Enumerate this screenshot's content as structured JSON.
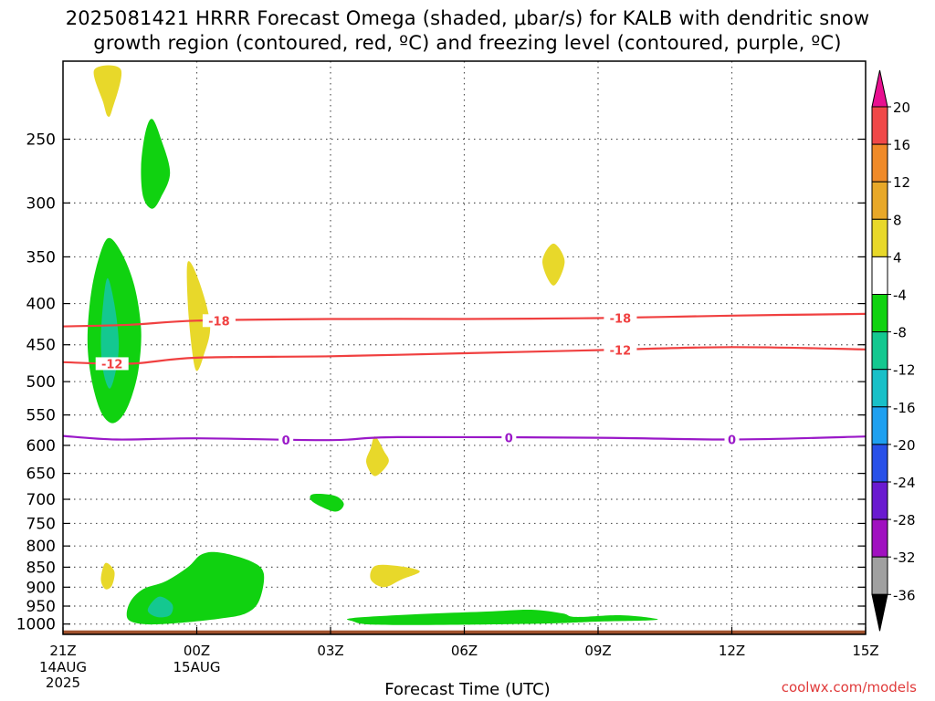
{
  "chart_data": {
    "type": "heatmap",
    "title_line1": "2025081421 HRRR Forecast Omega (shaded, μbar/s) for KALB with dendritic snow",
    "title_line2": "growth region (contoured, red, ºC) and freezing level (contoured, purple, ºC)",
    "xlabel": "Forecast Time (UTC)",
    "credit": "coolwx.com/models",
    "x_ticks": [
      {
        "h": 0,
        "label": "21Z",
        "sub": [
          "14AUG",
          "2025"
        ]
      },
      {
        "h": 3,
        "label": "00Z",
        "sub": [
          "15AUG"
        ]
      },
      {
        "h": 6,
        "label": "03Z",
        "sub": []
      },
      {
        "h": 9,
        "label": "06Z",
        "sub": []
      },
      {
        "h": 12,
        "label": "09Z",
        "sub": []
      },
      {
        "h": 15,
        "label": "12Z",
        "sub": []
      },
      {
        "h": 18,
        "label": "15Z",
        "sub": []
      }
    ],
    "x_range_hours": [
      0,
      18
    ],
    "y_axis": "pressure (hPa), log scale, decreasing upward",
    "y_range": [
      1030,
      200
    ],
    "y_ticks": [
      250,
      300,
      350,
      400,
      450,
      500,
      550,
      600,
      650,
      700,
      750,
      800,
      850,
      900,
      950,
      1000
    ],
    "grid": true,
    "colorbar": {
      "labels": [
        "20",
        "16",
        "12",
        "8",
        "4",
        "-4",
        "-8",
        "-12",
        "-16",
        "-20",
        "-24",
        "-28",
        "-32",
        "-36"
      ],
      "bins": [
        {
          "range": "16 to 20",
          "color": "#f04848"
        },
        {
          "range": "12 to 16",
          "color": "#f08a28"
        },
        {
          "range": "8 to 12",
          "color": "#e8a828"
        },
        {
          "range": "4 to 8",
          "color": "#e8d82a"
        },
        {
          "range": "-4 to 4",
          "color": "#ffffff"
        },
        {
          "range": "-8 to -4",
          "color": "#10d210"
        },
        {
          "range": "-12 to -8",
          "color": "#14c890"
        },
        {
          "range": "-16 to -12",
          "color": "#18c0c8"
        },
        {
          "range": "-20 to -16",
          "color": "#1ea0f0"
        },
        {
          "range": "-24 to -20",
          "color": "#2850e8"
        },
        {
          "range": "-28 to -24",
          "color": "#6a1ad0"
        },
        {
          "range": "-32 to -28",
          "color": "#a010c0"
        },
        {
          "range": "-36 to -32",
          "color": "#a0a0a0"
        }
      ],
      "top_arrow_color": "#e81090",
      "bottom_arrow_color": "#000000"
    },
    "ground_color": "#a0522d",
    "contours": [
      {
        "label": "-18",
        "color": "#f04040",
        "points": [
          [
            0,
            427
          ],
          [
            1.5,
            425
          ],
          [
            3,
            420
          ],
          [
            6,
            418
          ],
          [
            9,
            418
          ],
          [
            12,
            417
          ],
          [
            15,
            414
          ],
          [
            18,
            412
          ]
        ],
        "label_at": [
          [
            3.5,
            420
          ],
          [
            12.5,
            417
          ]
        ]
      },
      {
        "label": "-12",
        "color": "#f04040",
        "points": [
          [
            0,
            473
          ],
          [
            1.5,
            475
          ],
          [
            3,
            467
          ],
          [
            6,
            465
          ],
          [
            9,
            461
          ],
          [
            12,
            457
          ],
          [
            15,
            453
          ],
          [
            18,
            456
          ]
        ],
        "label_at": [
          [
            1.1,
            475
          ],
          [
            12.5,
            457
          ]
        ]
      },
      {
        "label": "0",
        "color": "#9a18c8",
        "points": [
          [
            0,
            584
          ],
          [
            1.2,
            590
          ],
          [
            3,
            588
          ],
          [
            6,
            591
          ],
          [
            7.5,
            586
          ],
          [
            12,
            587
          ],
          [
            15,
            590
          ],
          [
            18,
            585
          ]
        ],
        "label_at": [
          [
            5,
            591
          ],
          [
            10,
            587
          ],
          [
            15,
            590
          ]
        ]
      }
    ],
    "omega_regions": [
      {
        "color": "#e8d82a",
        "value_range": "4 to 8",
        "points": [
          [
            0.7,
            205
          ],
          [
            1.3,
            205
          ],
          [
            1.1,
            230
          ],
          [
            1.0,
            234
          ],
          [
            0.9,
            225
          ]
        ]
      },
      {
        "color": "#10d210",
        "value_range": "-8 to -4",
        "points": [
          [
            2,
            236
          ],
          [
            2.2,
            250
          ],
          [
            2.4,
            275
          ],
          [
            2.2,
            295
          ],
          [
            2.0,
            305
          ],
          [
            1.8,
            295
          ],
          [
            1.75,
            270
          ],
          [
            1.85,
            245
          ]
        ]
      },
      {
        "color": "#10d210",
        "value_range": "-8 to -4",
        "points": [
          [
            1.0,
            332
          ],
          [
            1.3,
            345
          ],
          [
            1.6,
            380
          ],
          [
            1.75,
            430
          ],
          [
            1.7,
            480
          ],
          [
            1.55,
            520
          ],
          [
            1.35,
            550
          ],
          [
            1.1,
            563
          ],
          [
            0.85,
            545
          ],
          [
            0.65,
            500
          ],
          [
            0.55,
            450
          ],
          [
            0.6,
            400
          ],
          [
            0.75,
            360
          ]
        ]
      },
      {
        "color": "#14c890",
        "value_range": "-12 to -8",
        "points": [
          [
            1.0,
            372
          ],
          [
            1.15,
            400
          ],
          [
            1.25,
            445
          ],
          [
            1.2,
            480
          ],
          [
            1.05,
            510
          ],
          [
            0.9,
            485
          ],
          [
            0.85,
            445
          ],
          [
            0.9,
            400
          ]
        ]
      },
      {
        "color": "#e8d82a",
        "value_range": "4 to 8",
        "points": [
          [
            2.8,
            355
          ],
          [
            3.05,
            375
          ],
          [
            3.3,
            425
          ],
          [
            3.15,
            465
          ],
          [
            3.0,
            485
          ],
          [
            2.9,
            460
          ],
          [
            2.8,
            400
          ]
        ]
      },
      {
        "color": "#e8d82a",
        "value_range": "4 to 8",
        "points": [
          [
            11.0,
            337
          ],
          [
            11.25,
            355
          ],
          [
            11.0,
            380
          ],
          [
            10.75,
            355
          ]
        ]
      },
      {
        "color": "#e8d82a",
        "value_range": "4 to 8",
        "points": [
          [
            7.0,
            585
          ],
          [
            7.2,
            610
          ],
          [
            7.3,
            630
          ],
          [
            7.0,
            655
          ],
          [
            6.8,
            630
          ],
          [
            6.9,
            605
          ]
        ]
      },
      {
        "color": "#10d210",
        "value_range": "-8 to -4",
        "points": [
          [
            5.6,
            690
          ],
          [
            6.1,
            693
          ],
          [
            6.3,
            710
          ],
          [
            6.1,
            725
          ],
          [
            5.6,
            705
          ]
        ]
      },
      {
        "color": "#e8d82a",
        "value_range": "4 to 8",
        "points": [
          [
            0.95,
            840
          ],
          [
            1.15,
            860
          ],
          [
            1.1,
            895
          ],
          [
            0.95,
            905
          ],
          [
            0.85,
            880
          ]
        ]
      },
      {
        "color": "#e8d82a",
        "value_range": "4 to 8",
        "points": [
          [
            7.0,
            847
          ],
          [
            7.5,
            847
          ],
          [
            8.0,
            860
          ],
          [
            7.6,
            880
          ],
          [
            7.2,
            900
          ],
          [
            6.9,
            880
          ]
        ]
      },
      {
        "color": "#10d210",
        "value_range": "-8 to -4",
        "points": [
          [
            3.5,
            815
          ],
          [
            4.2,
            835
          ],
          [
            4.5,
            865
          ],
          [
            4.4,
            935
          ],
          [
            4.1,
            970
          ],
          [
            3.5,
            985
          ],
          [
            2.5,
            998
          ],
          [
            1.8,
            1000
          ],
          [
            1.45,
            985
          ],
          [
            1.5,
            940
          ],
          [
            1.8,
            905
          ],
          [
            2.3,
            885
          ],
          [
            2.8,
            850
          ],
          [
            3.1,
            820
          ]
        ]
      },
      {
        "color": "#14c890",
        "value_range": "-12 to -8",
        "points": [
          [
            2.15,
            925
          ],
          [
            2.45,
            945
          ],
          [
            2.4,
            975
          ],
          [
            2.1,
            980
          ],
          [
            1.9,
            960
          ]
        ]
      },
      {
        "color": "#10d210",
        "value_range": "-8 to -4",
        "points": [
          [
            6.5,
            983
          ],
          [
            8.0,
            972
          ],
          [
            9.5,
            965
          ],
          [
            10.5,
            960
          ],
          [
            11.2,
            970
          ],
          [
            11.5,
            980
          ],
          [
            12.5,
            975
          ],
          [
            13.3,
            985
          ],
          [
            13.1,
            990
          ],
          [
            12.0,
            993
          ],
          [
            11.0,
            998
          ],
          [
            9.0,
            1002
          ],
          [
            7.0,
            1002
          ],
          [
            6.5,
            992
          ]
        ]
      }
    ]
  }
}
